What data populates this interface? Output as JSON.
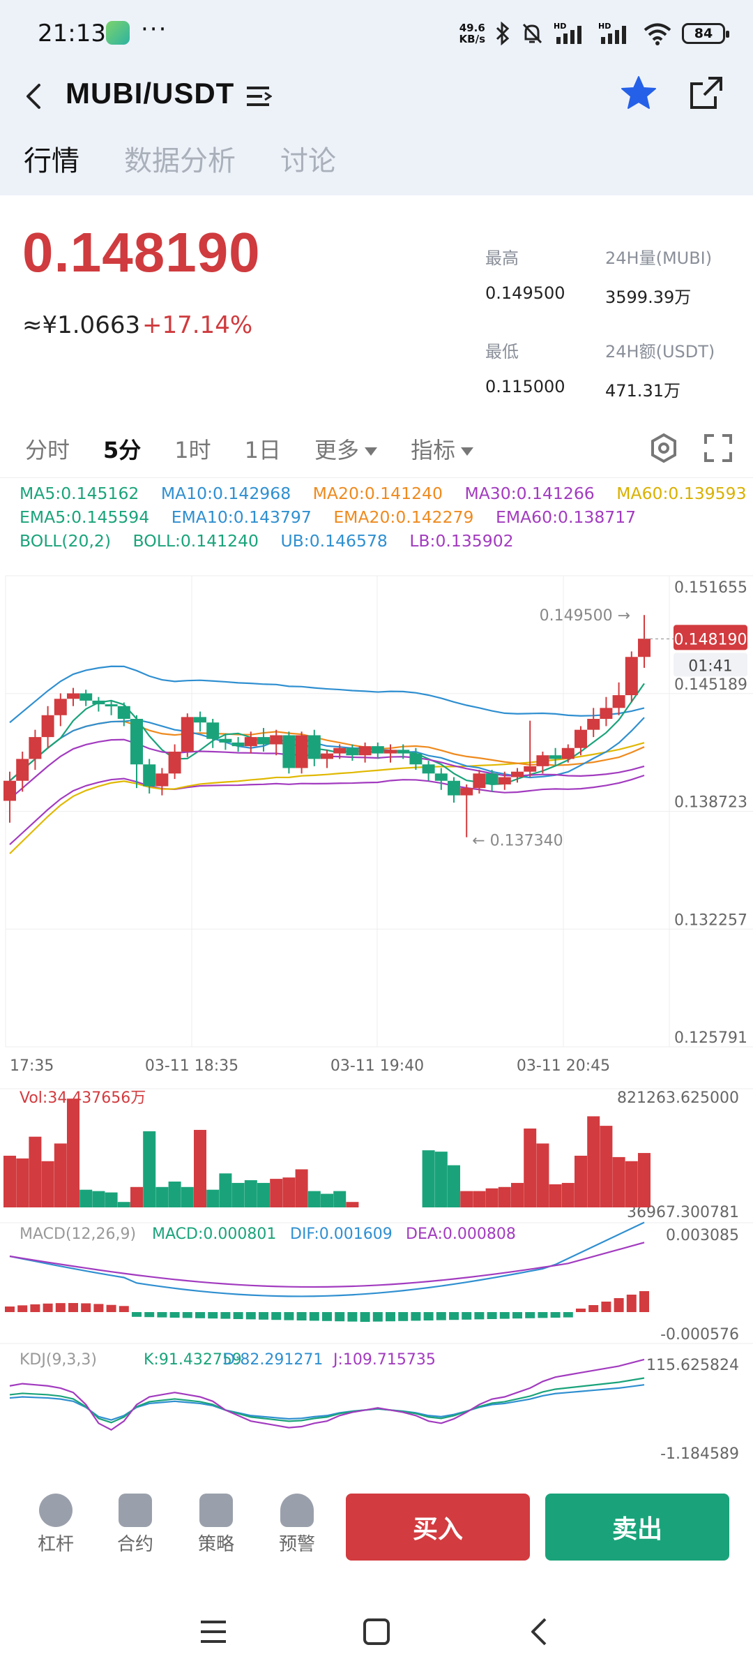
{
  "status_bar": {
    "time": "21:13",
    "net_speed_top": "49.6",
    "net_speed_bottom": "KB/s",
    "battery": "84"
  },
  "header": {
    "pair": "MUBI/USDT",
    "tabs": [
      "行情",
      "数据分析",
      "讨论"
    ]
  },
  "ticker": {
    "price": "0.148190",
    "cny": "≈¥1.0663",
    "change": "+17.14%",
    "high_label": "最高",
    "high": "0.149500",
    "vol_label": "24H量(MUBI)",
    "vol": "3599.39万",
    "low_label": "最低",
    "low": "0.115000",
    "amt_label": "24H额(USDT)",
    "amt": "471.31万"
  },
  "periods": [
    "分时",
    "5分",
    "1时",
    "1日",
    "更多",
    "指标"
  ],
  "indicators": {
    "ma5": "MA5:0.145162",
    "ma10": "MA10:0.142968",
    "ma20": "MA20:0.141240",
    "ma30": "MA30:0.141266",
    "ma60": "MA60:0.139593",
    "ema5": "EMA5:0.145594",
    "ema10": "EMA10:0.143797",
    "ema20": "EMA20:0.142279",
    "ema60": "EMA60:0.138717",
    "boll": "BOLL(20,2)",
    "boll_mid": "BOLL:0.141240",
    "ub": "UB:0.146578",
    "lb": "LB:0.135902"
  },
  "colors": {
    "up": "#d23b3f",
    "down": "#1aa37a",
    "ma5": "#1aa37a",
    "ma10": "#2f8fd0",
    "ma20": "#ee8a1e",
    "ma30": "#a23bbf",
    "ma60": "#e0b800"
  },
  "chart_data": [
    {
      "type": "candlestick",
      "title": "",
      "y_ticks": [
        "0.151655",
        "0.145189",
        "0.138723",
        "0.132257",
        "0.125791"
      ],
      "x_ticks": [
        "17:35",
        "03-11 18:35",
        "03-11 19:40",
        "03-11 20:45"
      ],
      "ylim": [
        0.125791,
        0.151655
      ],
      "high_annotation": "0.149500",
      "low_annotation": "0.137340",
      "last_price": "0.148190",
      "countdown": "01:41",
      "candles": [
        [
          0.1393,
          0.1404,
          0.1381,
          0.1409
        ],
        [
          0.1404,
          0.1416,
          0.1398,
          0.142
        ],
        [
          0.1416,
          0.1428,
          0.141,
          0.1432
        ],
        [
          0.1428,
          0.144,
          0.1422,
          0.1445
        ],
        [
          0.144,
          0.1449,
          0.1434,
          0.1452
        ],
        [
          0.1449,
          0.1452,
          0.1445,
          0.1455
        ],
        [
          0.1452,
          0.1448,
          0.1445,
          0.1454
        ],
        [
          0.1448,
          0.1446,
          0.1442,
          0.145
        ],
        [
          0.1446,
          0.1445,
          0.144,
          0.1448
        ],
        [
          0.1445,
          0.1438,
          0.1434,
          0.1447
        ],
        [
          0.1438,
          0.1413,
          0.14,
          0.144
        ],
        [
          0.1413,
          0.1401,
          0.1397,
          0.1416
        ],
        [
          0.1401,
          0.1408,
          0.1396,
          0.1411
        ],
        [
          0.1408,
          0.142,
          0.1405,
          0.1424
        ],
        [
          0.142,
          0.1439,
          0.1417,
          0.1441
        ],
        [
          0.1439,
          0.1436,
          0.1431,
          0.1442
        ],
        [
          0.1436,
          0.1427,
          0.1422,
          0.1438
        ],
        [
          0.1427,
          0.1425,
          0.1421,
          0.143
        ],
        [
          0.1425,
          0.1423,
          0.142,
          0.1428
        ],
        [
          0.1423,
          0.1428,
          0.1419,
          0.1431
        ],
        [
          0.1428,
          0.1424,
          0.142,
          0.1433
        ],
        [
          0.1424,
          0.1429,
          0.1418,
          0.1432
        ],
        [
          0.1429,
          0.1411,
          0.1408,
          0.1431
        ],
        [
          0.1411,
          0.1429,
          0.1408,
          0.1431
        ],
        [
          0.1429,
          0.1416,
          0.1412,
          0.1432
        ],
        [
          0.1416,
          0.1419,
          0.1411,
          0.1421
        ],
        [
          0.1419,
          0.1422,
          0.1416,
          0.1424
        ],
        [
          0.1422,
          0.1418,
          0.1415,
          0.1424
        ],
        [
          0.1418,
          0.1423,
          0.1414,
          0.1425
        ],
        [
          0.1423,
          0.1419,
          0.1416,
          0.1425
        ],
        [
          0.1419,
          0.1421,
          0.1414,
          0.1424
        ],
        [
          0.1421,
          0.1419,
          0.1416,
          0.1424
        ],
        [
          0.1419,
          0.1413,
          0.141,
          0.1422
        ],
        [
          0.1413,
          0.1408,
          0.1404,
          0.1415
        ],
        [
          0.1408,
          0.1404,
          0.1399,
          0.1411
        ],
        [
          0.1404,
          0.1396,
          0.1392,
          0.1406
        ],
        [
          0.1396,
          0.14,
          0.1373,
          0.1402
        ],
        [
          0.14,
          0.1408,
          0.1397,
          0.141
        ],
        [
          0.1408,
          0.1402,
          0.1398,
          0.141
        ],
        [
          0.1402,
          0.1406,
          0.1399,
          0.1409
        ],
        [
          0.1406,
          0.1409,
          0.1403,
          0.1411
        ],
        [
          0.1409,
          0.1412,
          0.1406,
          0.1437
        ],
        [
          0.1412,
          0.1418,
          0.1408,
          0.142
        ],
        [
          0.1418,
          0.1416,
          0.1412,
          0.1422
        ],
        [
          0.1416,
          0.1422,
          0.1414,
          0.1424
        ],
        [
          0.1422,
          0.1432,
          0.1418,
          0.1434
        ],
        [
          0.1432,
          0.1438,
          0.1428,
          0.1444
        ],
        [
          0.1438,
          0.1444,
          0.1434,
          0.145
        ],
        [
          0.1444,
          0.1451,
          0.144,
          0.1458
        ],
        [
          0.1451,
          0.1472,
          0.1447,
          0.1475
        ],
        [
          0.1472,
          0.1482,
          0.1466,
          0.1495
        ]
      ]
    },
    {
      "type": "bar",
      "title": "Vol:34.437656万",
      "y_ticks": [
        "821263.625000",
        "36967.300781"
      ],
      "values": [
        380000,
        360000,
        520000,
        340000,
        470000,
        800000,
        130000,
        120000,
        110000,
        40000,
        150000,
        560000,
        150000,
        190000,
        150000,
        570000,
        130000,
        250000,
        180000,
        200000,
        180000,
        210000,
        220000,
        280000,
        120000,
        100000,
        120000,
        40000,
        0,
        0,
        0,
        0,
        0,
        420000,
        410000,
        310000,
        120000,
        120000,
        140000,
        150000,
        180000,
        580000,
        470000,
        170000,
        180000,
        380000,
        670000,
        600000,
        370000,
        340000,
        400000
      ],
      "up": [
        true,
        true,
        true,
        true,
        true,
        true,
        false,
        false,
        false,
        false,
        true,
        false,
        false,
        false,
        false,
        true,
        false,
        false,
        false,
        false,
        false,
        true,
        true,
        true,
        false,
        false,
        false,
        true,
        true,
        true,
        true,
        true,
        true,
        false,
        false,
        false,
        true,
        true,
        true,
        true,
        true,
        true,
        true,
        true,
        true,
        true,
        true,
        true,
        true,
        true,
        true
      ]
    },
    {
      "type": "bar",
      "title": "MACD(12,26,9)",
      "series_labels": [
        "MACD:0.000801",
        "DIF:0.001609",
        "DEA:0.000808"
      ],
      "y_ticks": [
        "0.003085",
        "-0.000576"
      ]
    },
    {
      "type": "line",
      "title": "KDJ(9,3,3)",
      "series_labels": [
        "K:91.432759",
        "D:82.291271",
        "J:109.715735"
      ],
      "y_ticks": [
        "115.625824",
        "-1.184589"
      ]
    }
  ],
  "bottom_nav": {
    "items": [
      "杠杆",
      "合约",
      "策略",
      "预警"
    ],
    "buy": "买入",
    "sell": "卖出"
  }
}
